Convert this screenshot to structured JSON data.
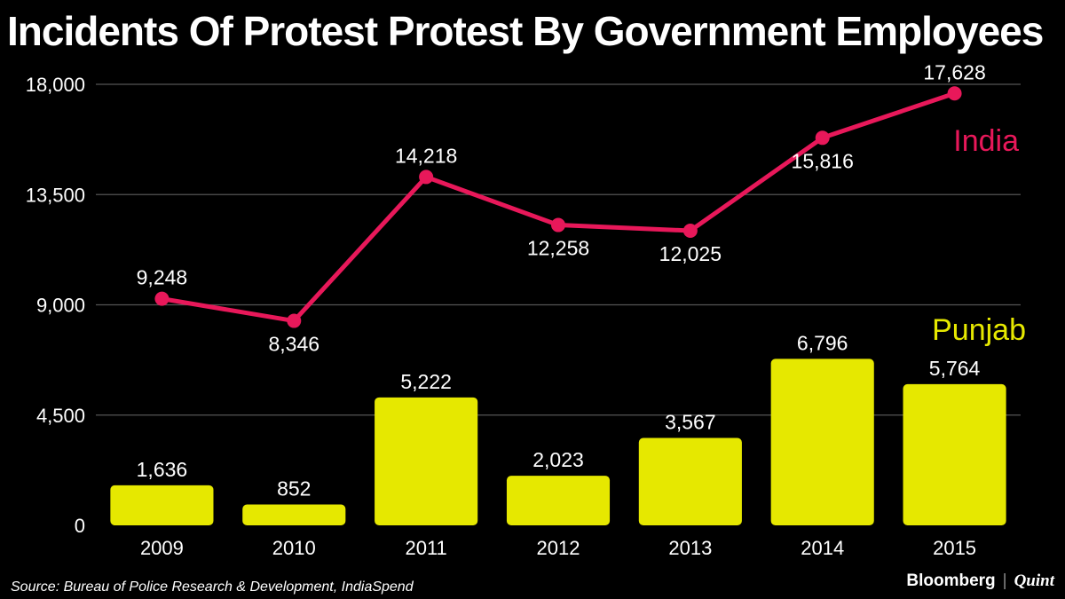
{
  "title": "Incidents Of Protest Protest By Government Employees",
  "source": "Source: Bureau of Police Research & Development, IndiaSpend",
  "brand": {
    "primary": "Bloomberg",
    "separator": "|",
    "secondary": "Quint"
  },
  "colors": {
    "background": "#000000",
    "india": "#e8185a",
    "punjab": "#e6e800",
    "grid": "#555555",
    "text": "#ffffff"
  },
  "chart_data": {
    "type": "bar+line",
    "title": "Incidents Of Protest Protest By Government Employees",
    "categories": [
      "2009",
      "2010",
      "2011",
      "2012",
      "2013",
      "2014",
      "2015"
    ],
    "ylim": [
      0,
      18000
    ],
    "yticks": [
      0,
      4500,
      9000,
      13500,
      18000
    ],
    "ytick_labels": [
      "0",
      "4,500",
      "9,000",
      "13,500",
      "18,000"
    ],
    "series": [
      {
        "name": "India",
        "kind": "line",
        "values": [
          9248,
          8346,
          14218,
          12258,
          12025,
          15816,
          17628
        ],
        "labels": [
          "9,248",
          "8,346",
          "14,218",
          "12,258",
          "12,025",
          "15,816",
          "17,628"
        ]
      },
      {
        "name": "Punjab",
        "kind": "bar",
        "values": [
          1636,
          852,
          5222,
          2023,
          3567,
          6796,
          5764
        ],
        "labels": [
          "1,636",
          "852",
          "5,222",
          "2,023",
          "3,567",
          "6,796",
          "5,764"
        ]
      }
    ],
    "grid": true
  }
}
